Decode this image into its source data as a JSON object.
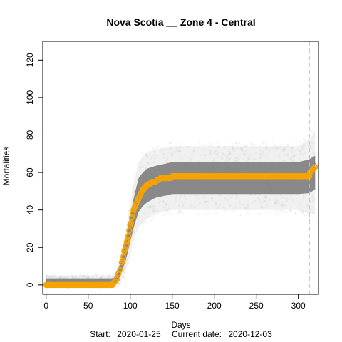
{
  "chart_data": {
    "type": "scatter",
    "title": "Nova Scotia __ Zone 4 - Central",
    "xlabel": "Days",
    "ylabel": "Mortalities",
    "caption_start_label": "Start:",
    "caption_start_value": "2020-01-25",
    "caption_current_label": "Current date:",
    "caption_current_value": "2020-12-03",
    "xlim": [
      -4,
      324
    ],
    "ylim": [
      -5,
      130
    ],
    "x_ticks": [
      "0",
      "50",
      "100",
      "150",
      "200",
      "250",
      "300"
    ],
    "y_ticks": [
      "0",
      "20",
      "40",
      "60",
      "80",
      "100",
      "120"
    ],
    "grid": false,
    "legend": "none",
    "current_day": 313,
    "colors": {
      "simulation_cloud": "#808080",
      "observed": "#F5A300",
      "fit_line": "#6A6AE8",
      "current_marker": "#BBBBBB"
    },
    "simulation_band": {
      "x": [
        0,
        80,
        85,
        90,
        95,
        100,
        105,
        110,
        115,
        120,
        130,
        140,
        150,
        200,
        250,
        300,
        313,
        320
      ],
      "center": [
        2,
        2,
        4,
        11,
        19,
        30,
        40,
        48,
        51,
        53,
        55,
        56,
        57,
        57,
        57,
        57,
        58,
        60
      ],
      "inner_half_width": [
        1.5,
        1.5,
        2.5,
        4,
        5.5,
        7,
        8,
        9,
        9,
        9,
        8.5,
        8.5,
        8.5,
        8.5,
        8.5,
        8.5,
        9,
        9
      ],
      "outer_half_width": [
        3,
        3,
        5,
        8,
        11,
        14,
        16,
        17,
        18,
        18,
        17,
        17,
        17,
        17,
        17,
        17,
        20,
        22
      ]
    },
    "observed": {
      "name": "",
      "x": [
        80,
        82,
        84,
        86,
        88,
        90,
        91,
        92,
        93,
        94,
        95,
        96,
        97,
        98,
        99,
        100,
        101,
        102,
        103,
        104,
        105,
        106,
        107,
        108,
        109,
        110,
        111,
        112,
        113,
        114,
        115,
        116,
        117,
        118,
        119,
        120,
        122,
        124,
        126,
        128,
        130,
        132,
        134,
        136,
        138,
        140,
        142,
        144,
        146,
        148,
        150,
        313,
        314,
        316,
        318,
        320
      ],
      "y": [
        1,
        2,
        3,
        6,
        8,
        12,
        13,
        15,
        18,
        19,
        21,
        23,
        24,
        26,
        29,
        32,
        33,
        36,
        38,
        40,
        41,
        42,
        43,
        44,
        46,
        46,
        47,
        48,
        49,
        50,
        51,
        51,
        52,
        52,
        53,
        53,
        54,
        54,
        55,
        55,
        55,
        56,
        56,
        57,
        57,
        57,
        57,
        57,
        57,
        57,
        58,
        58,
        60,
        61,
        62,
        63
      ],
      "baseline_y": 0,
      "baseline_x_range": [
        0,
        79
      ],
      "plateau_y": 58,
      "plateau_x_range": [
        150,
        313
      ]
    },
    "fit_line": {
      "x": [
        0,
        80,
        85,
        90,
        95,
        100,
        105,
        110,
        115,
        120,
        130,
        140,
        150,
        200,
        250,
        300,
        313,
        316,
        320
      ],
      "y": [
        0,
        0,
        3,
        10,
        18,
        29,
        38,
        44,
        49,
        52,
        55,
        57,
        58,
        58,
        58,
        58,
        58,
        61,
        65
      ]
    }
  }
}
